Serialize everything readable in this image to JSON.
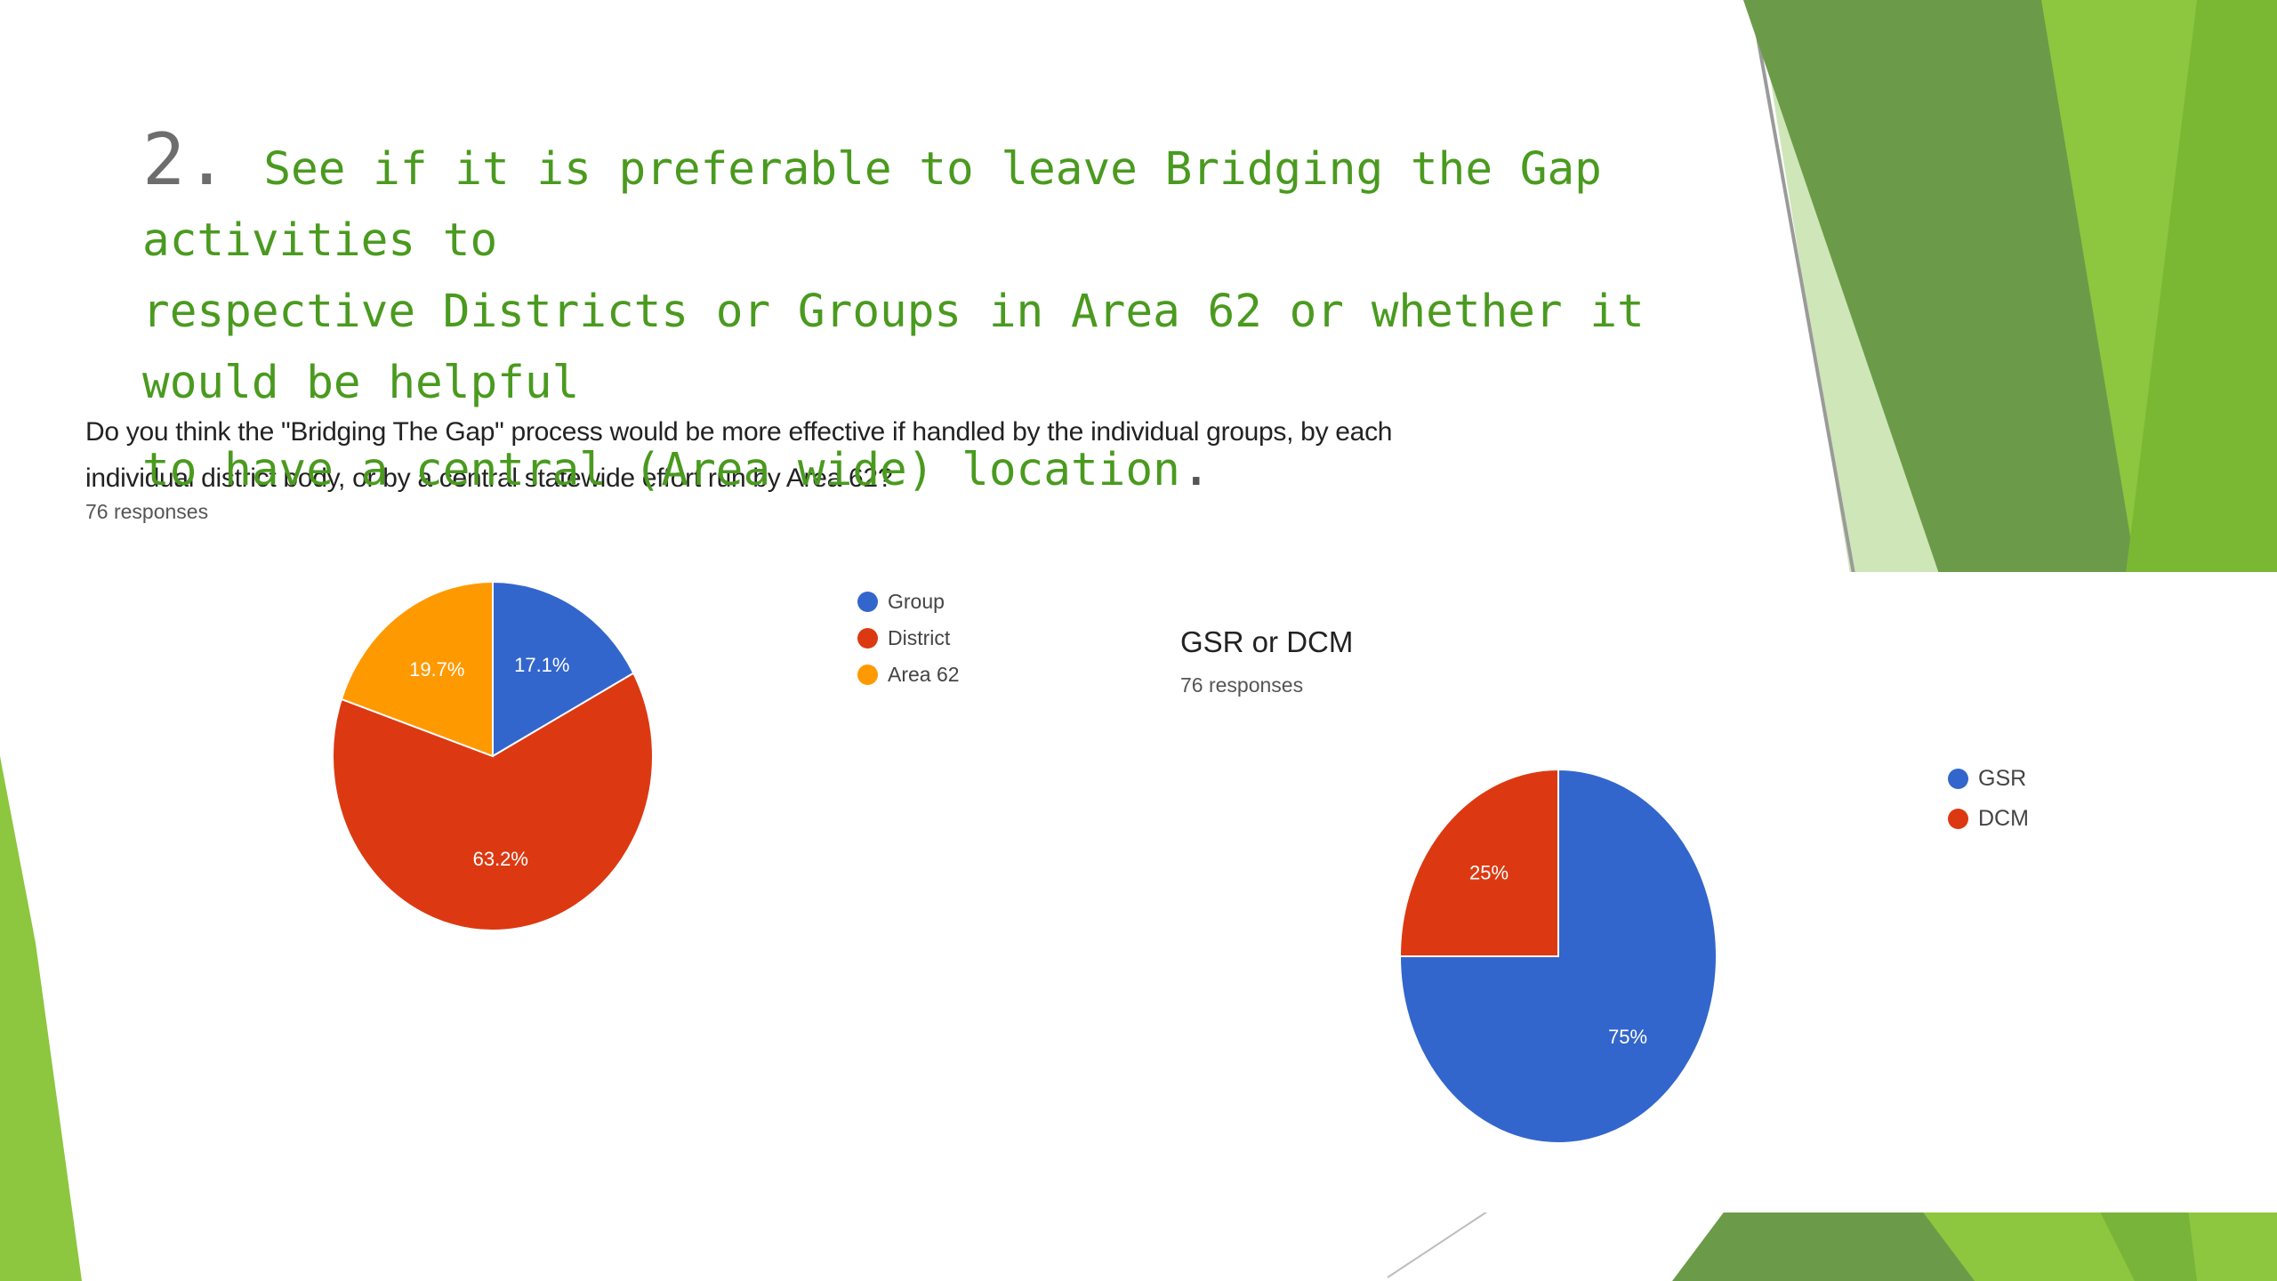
{
  "slide": {
    "number": "2.",
    "title_lines": [
      "See if it is preferable to leave Bridging the Gap activities to",
      "respective Districts or Groups in Area 62 or whether it would be helpful",
      "to have a central (Area wide) location"
    ],
    "title_end": "."
  },
  "theme": {
    "dark_green": "#6b9b48",
    "mid_green": "#78b33a",
    "light_green": "#8dc63f",
    "pale_green": "#cfe6b8"
  },
  "chart_data": [
    {
      "type": "pie",
      "question": "Do you think the \"Bridging The Gap\" process would be more effective if handled by the individual groups, by each individual district body, or by a central statewide effort run by Area 62?",
      "responses": "76 responses",
      "categories": [
        "Group",
        "District",
        "Area 62"
      ],
      "values": [
        17.1,
        63.2,
        19.7
      ],
      "labels": [
        "17.1%",
        "63.2%",
        "19.7%"
      ],
      "colors": [
        "#3366cc",
        "#dc3912",
        "#ff9900"
      ],
      "legend": "right"
    },
    {
      "type": "pie",
      "title": "GSR or DCM",
      "responses": "76 responses",
      "categories": [
        "GSR",
        "DCM"
      ],
      "values": [
        75,
        25
      ],
      "labels": [
        "75%",
        "25%"
      ],
      "colors": [
        "#3366cc",
        "#dc3912"
      ],
      "legend": "right"
    }
  ]
}
